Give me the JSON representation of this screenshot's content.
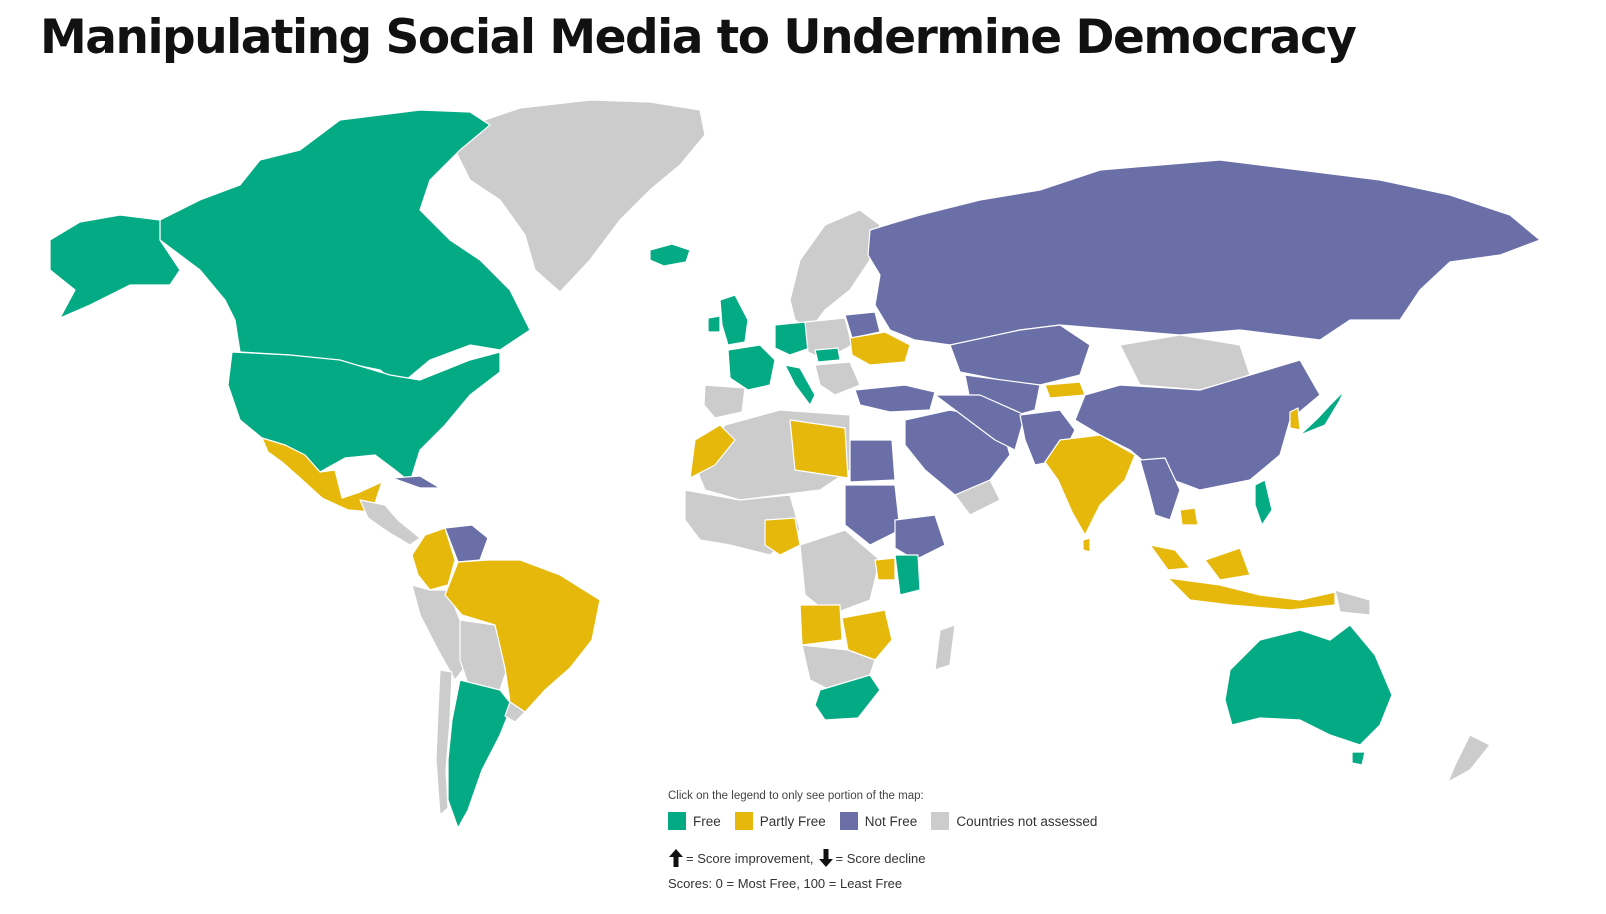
{
  "title": "Manipulating Social Media to Undermine Democracy",
  "colors": {
    "free": "#04aa84",
    "partly_free": "#e6b80b",
    "not_free": "#6a6fa7",
    "not_assessed": "#cccccc"
  },
  "legend": {
    "instruction": "Click on the legend to only see portion of the map:",
    "items": [
      {
        "key": "free",
        "label": "Free",
        "color": "#04aa84"
      },
      {
        "key": "partly_free",
        "label": "Partly Free",
        "color": "#e6b80b"
      },
      {
        "key": "not_free",
        "label": "Not Free",
        "color": "#6a6fa7"
      },
      {
        "key": "not_assessed",
        "label": "Countries not assessed",
        "color": "#cccccc"
      }
    ],
    "improvement_label": "= Score improvement,",
    "decline_label": "= Score decline",
    "scores_note": "Scores: 0 = Most Free, 100 = Least Free"
  }
}
